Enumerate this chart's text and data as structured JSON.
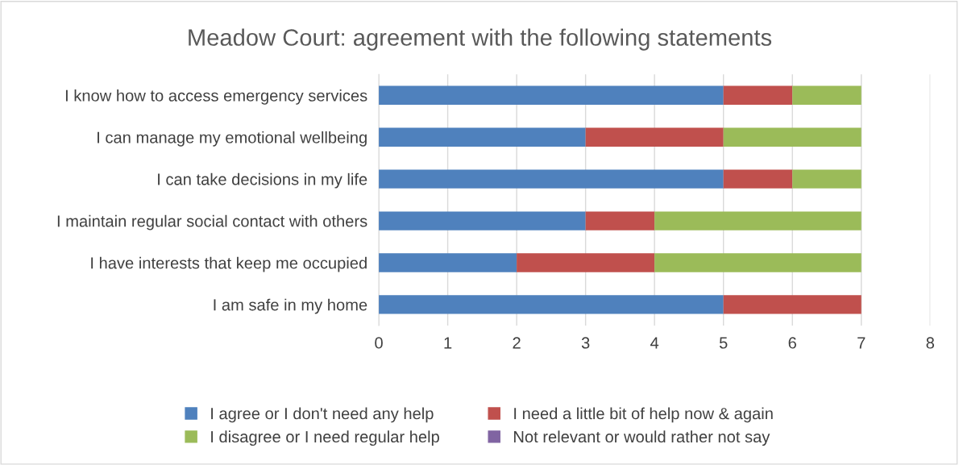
{
  "chart_data": {
    "type": "bar",
    "orientation": "horizontal",
    "stacked": true,
    "title": "Meadow Court: agreement with the following statements",
    "categories": [
      "I know how to access emergency services",
      "I can manage my emotional wellbeing",
      "I can take decisions in my life",
      "I maintain regular social contact with others",
      "I have interests that keep me occupied",
      "I am safe in my home"
    ],
    "series": [
      {
        "name": "I agree or I don't need any help",
        "color": "#4f81bd",
        "values": [
          5,
          3,
          5,
          3,
          2,
          5
        ]
      },
      {
        "name": "I need a little bit of help now & again",
        "color": "#c0504d",
        "values": [
          1,
          2,
          1,
          1,
          2,
          2
        ]
      },
      {
        "name": "I disagree or I need regular help",
        "color": "#9bbb59",
        "values": [
          1,
          2,
          1,
          3,
          3,
          0
        ]
      },
      {
        "name": "Not relevant or would rather not say",
        "color": "#8064a2",
        "values": [
          0,
          0,
          0,
          0,
          0,
          0
        ]
      }
    ],
    "xlim": [
      0,
      8
    ],
    "xticks": [
      0,
      1,
      2,
      3,
      4,
      5,
      6,
      7,
      8
    ],
    "grid": "x",
    "legend": "bottom"
  }
}
